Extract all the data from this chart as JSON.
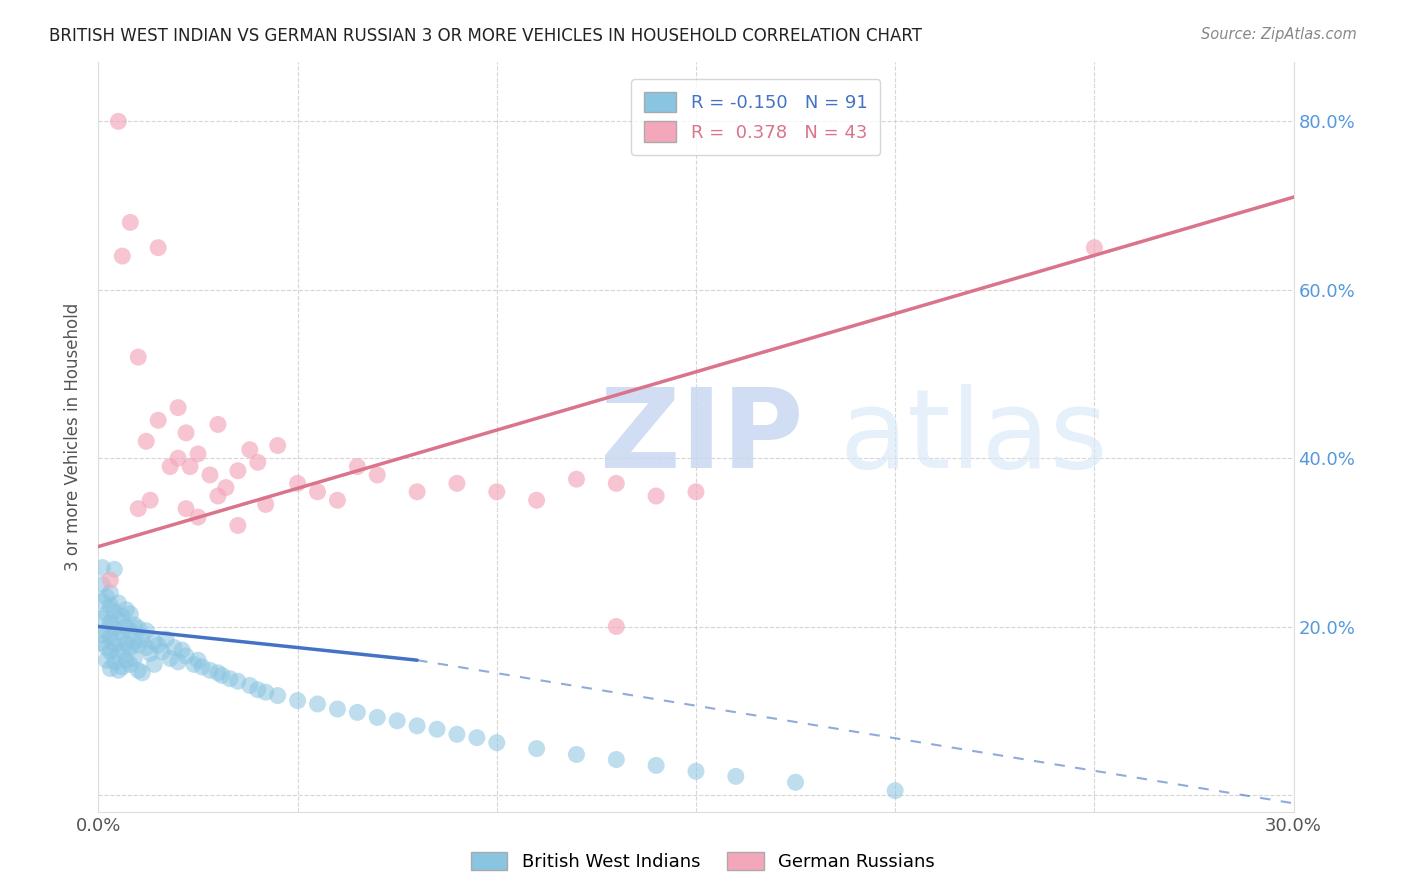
{
  "title": "BRITISH WEST INDIAN VS GERMAN RUSSIAN 3 OR MORE VEHICLES IN HOUSEHOLD CORRELATION CHART",
  "source": "Source: ZipAtlas.com",
  "ylabel": "3 or more Vehicles in Household",
  "xmin": 0.0,
  "xmax": 0.3,
  "ymin": -0.02,
  "ymax": 0.87,
  "xtick_positions": [
    0.0,
    0.05,
    0.1,
    0.15,
    0.2,
    0.25,
    0.3
  ],
  "xtick_labels": [
    "0.0%",
    "",
    "",
    "",
    "",
    "",
    "30.0%"
  ],
  "ytick_positions": [
    0.0,
    0.2,
    0.4,
    0.6,
    0.8
  ],
  "ytick_labels_right": [
    "",
    "20.0%",
    "40.0%",
    "60.0%",
    "80.0%"
  ],
  "blue_color": "#89c4e1",
  "pink_color": "#f4a7bb",
  "blue_line_color": "#4472c4",
  "pink_line_color": "#d9748a",
  "legend_blue_r": "-0.150",
  "legend_blue_n": "91",
  "legend_pink_r": "0.378",
  "legend_pink_n": "43",
  "blue_scatter_x": [
    0.001,
    0.001,
    0.001,
    0.001,
    0.001,
    0.002,
    0.002,
    0.002,
    0.002,
    0.002,
    0.003,
    0.003,
    0.003,
    0.003,
    0.003,
    0.003,
    0.004,
    0.004,
    0.004,
    0.004,
    0.004,
    0.005,
    0.005,
    0.005,
    0.005,
    0.005,
    0.006,
    0.006,
    0.006,
    0.006,
    0.007,
    0.007,
    0.007,
    0.007,
    0.008,
    0.008,
    0.008,
    0.008,
    0.009,
    0.009,
    0.009,
    0.01,
    0.01,
    0.01,
    0.011,
    0.011,
    0.012,
    0.012,
    0.013,
    0.014,
    0.014,
    0.015,
    0.016,
    0.017,
    0.018,
    0.019,
    0.02,
    0.021,
    0.022,
    0.024,
    0.025,
    0.026,
    0.028,
    0.03,
    0.031,
    0.033,
    0.035,
    0.038,
    0.04,
    0.042,
    0.045,
    0.05,
    0.055,
    0.06,
    0.065,
    0.07,
    0.075,
    0.08,
    0.085,
    0.09,
    0.095,
    0.1,
    0.11,
    0.12,
    0.13,
    0.14,
    0.15,
    0.16,
    0.175,
    0.2,
    0.001
  ],
  "blue_scatter_y": [
    0.18,
    0.19,
    0.21,
    0.23,
    0.25,
    0.195,
    0.175,
    0.215,
    0.235,
    0.16,
    0.188,
    0.205,
    0.17,
    0.225,
    0.15,
    0.24,
    0.178,
    0.198,
    0.218,
    0.158,
    0.268,
    0.185,
    0.168,
    0.208,
    0.148,
    0.228,
    0.172,
    0.192,
    0.152,
    0.212,
    0.18,
    0.2,
    0.16,
    0.22,
    0.175,
    0.195,
    0.155,
    0.215,
    0.182,
    0.202,
    0.162,
    0.178,
    0.198,
    0.148,
    0.185,
    0.145,
    0.175,
    0.195,
    0.168,
    0.182,
    0.155,
    0.178,
    0.17,
    0.185,
    0.162,
    0.175,
    0.158,
    0.172,
    0.165,
    0.155,
    0.16,
    0.152,
    0.148,
    0.145,
    0.142,
    0.138,
    0.135,
    0.13,
    0.125,
    0.122,
    0.118,
    0.112,
    0.108,
    0.102,
    0.098,
    0.092,
    0.088,
    0.082,
    0.078,
    0.072,
    0.068,
    0.062,
    0.055,
    0.048,
    0.042,
    0.035,
    0.028,
    0.022,
    0.015,
    0.005,
    0.27
  ],
  "pink_scatter_x": [
    0.003,
    0.005,
    0.006,
    0.008,
    0.01,
    0.01,
    0.012,
    0.013,
    0.015,
    0.015,
    0.018,
    0.02,
    0.02,
    0.022,
    0.022,
    0.023,
    0.025,
    0.025,
    0.028,
    0.03,
    0.03,
    0.032,
    0.035,
    0.035,
    0.038,
    0.04,
    0.042,
    0.045,
    0.05,
    0.055,
    0.06,
    0.065,
    0.07,
    0.08,
    0.09,
    0.1,
    0.11,
    0.12,
    0.13,
    0.14,
    0.15,
    0.25,
    0.13
  ],
  "pink_scatter_y": [
    0.255,
    0.8,
    0.64,
    0.68,
    0.52,
    0.34,
    0.42,
    0.35,
    0.65,
    0.445,
    0.39,
    0.46,
    0.4,
    0.43,
    0.34,
    0.39,
    0.405,
    0.33,
    0.38,
    0.44,
    0.355,
    0.365,
    0.385,
    0.32,
    0.41,
    0.395,
    0.345,
    0.415,
    0.37,
    0.36,
    0.35,
    0.39,
    0.38,
    0.36,
    0.37,
    0.36,
    0.35,
    0.375,
    0.37,
    0.355,
    0.36,
    0.65,
    0.2
  ],
  "blue_trend_x0": 0.0,
  "blue_trend_x_solid_end": 0.08,
  "blue_trend_x1": 0.3,
  "blue_trend_y0": 0.2,
  "blue_trend_y_solid_end": 0.16,
  "blue_trend_y1": -0.01,
  "pink_trend_x0": 0.0,
  "pink_trend_x1": 0.3,
  "pink_trend_y0": 0.295,
  "pink_trend_y1": 0.71,
  "background_color": "#ffffff",
  "grid_color": "#cccccc",
  "title_color": "#222222",
  "axis_label_color": "#555555",
  "right_ytick_color": "#5599dd"
}
